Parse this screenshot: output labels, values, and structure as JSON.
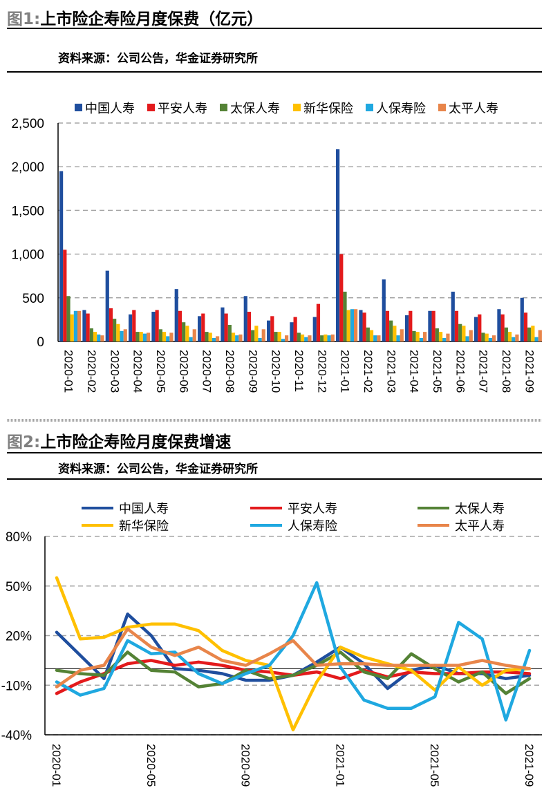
{
  "charts": [
    {
      "figure_label": "图1:",
      "title": "上市险企寿险月度保费（亿元）",
      "source": "资料来源：公司公告，华金证券研究所"
    },
    {
      "figure_label": "图2:",
      "title": "上市险企寿险月度保费增速",
      "source": "资料来源：公司公告，华金证券研究所"
    }
  ],
  "chart_data": [
    {
      "type": "bar",
      "categories": [
        "2020-01",
        "2020-02",
        "2020-03",
        "2020-04",
        "2020-05",
        "2020-06",
        "2020-07",
        "2020-08",
        "2020-09",
        "2020-10",
        "2020-11",
        "2020-12",
        "2021-01",
        "2021-02",
        "2021-03",
        "2021-04",
        "2021-05",
        "2021-06",
        "2021-07",
        "2021-08",
        "2021-09"
      ],
      "ylim": [
        0,
        2500
      ],
      "yticks": [
        0,
        500,
        1000,
        1500,
        2000,
        2500
      ],
      "ytick_labels": [
        "0",
        "500",
        "1,000",
        "1,500",
        "2,000",
        "2,500"
      ],
      "grid": true,
      "legend_position": "top",
      "series": [
        {
          "name": "中国人寿",
          "color": "#1F4E9E",
          "values": [
            1950,
            360,
            810,
            310,
            340,
            600,
            290,
            390,
            520,
            240,
            220,
            280,
            2200,
            360,
            710,
            300,
            350,
            570,
            280,
            370,
            500
          ]
        },
        {
          "name": "平安人寿",
          "color": "#E31A1C",
          "values": [
            1050,
            320,
            380,
            360,
            360,
            350,
            320,
            320,
            340,
            290,
            280,
            430,
            1000,
            330,
            350,
            350,
            350,
            350,
            310,
            310,
            330
          ]
        },
        {
          "name": "太保人寿",
          "color": "#548235",
          "values": [
            520,
            150,
            260,
            110,
            140,
            220,
            110,
            190,
            130,
            110,
            100,
            70,
            570,
            160,
            240,
            120,
            150,
            200,
            100,
            160,
            160
          ]
        },
        {
          "name": "新华保险",
          "color": "#FFC000",
          "values": [
            310,
            110,
            200,
            110,
            110,
            180,
            100,
            100,
            180,
            110,
            80,
            80,
            360,
            130,
            180,
            110,
            110,
            180,
            90,
            110,
            180
          ]
        },
        {
          "name": "人保寿险",
          "color": "#1FA8E0",
          "values": [
            350,
            80,
            120,
            90,
            60,
            50,
            40,
            70,
            40,
            30,
            50,
            70,
            370,
            70,
            70,
            40,
            40,
            60,
            40,
            50,
            50
          ]
        },
        {
          "name": "太平人寿",
          "color": "#E8854A",
          "values": [
            350,
            70,
            140,
            100,
            100,
            140,
            60,
            80,
            140,
            70,
            70,
            80,
            370,
            70,
            140,
            110,
            90,
            130,
            70,
            80,
            130
          ]
        }
      ]
    },
    {
      "type": "line",
      "categories": [
        "2020-01",
        "2020-02",
        "2020-03",
        "2020-04",
        "2020-05",
        "2020-06",
        "2020-07",
        "2020-08",
        "2020-09",
        "2020-10",
        "2020-11",
        "2020-12",
        "2021-01",
        "2021-02",
        "2021-03",
        "2021-04",
        "2021-05",
        "2021-06",
        "2021-07",
        "2021-08",
        "2021-09"
      ],
      "xtick_labels": [
        "2020-01",
        "2020-05",
        "2020-09",
        "2021-01",
        "2021-05",
        "2021-09"
      ],
      "ylim": [
        -40,
        80
      ],
      "yticks": [
        -40,
        -10,
        20,
        50,
        80
      ],
      "ytick_labels": [
        "-40%",
        "-10%",
        "20%",
        "50%",
        "80%"
      ],
      "grid": true,
      "legend_position": "top",
      "series": [
        {
          "name": "中国人寿",
          "color": "#1F4E9E",
          "values": [
            22,
            8,
            -6,
            33,
            20,
            0,
            -1,
            -3,
            -7,
            -7,
            -4,
            4,
            13,
            3,
            -12,
            -1,
            2,
            -3,
            -3,
            -6,
            -4
          ]
        },
        {
          "name": "平安人寿",
          "color": "#E31A1C",
          "values": [
            -15,
            -8,
            -3,
            3,
            5,
            2,
            4,
            2,
            -1,
            -2,
            -4,
            -2,
            -6,
            -1,
            -5,
            -2,
            -3,
            -3,
            -2,
            -2,
            -3
          ]
        },
        {
          "name": "太保人寿",
          "color": "#548235",
          "values": [
            -1,
            -3,
            -4,
            10,
            -1,
            -2,
            -11,
            -9,
            -1,
            -6,
            -4,
            2,
            10,
            -2,
            -6,
            9,
            0,
            -8,
            -2,
            -15,
            -6
          ]
        },
        {
          "name": "新华保险",
          "color": "#FFC000",
          "values": [
            55,
            18,
            19,
            25,
            27,
            27,
            23,
            11,
            5,
            2,
            -37,
            -8,
            13,
            7,
            3,
            -1,
            -13,
            1,
            -10,
            -1,
            0
          ]
        },
        {
          "name": "人保寿险",
          "color": "#1FA8E0",
          "values": [
            -8,
            -16,
            -12,
            17,
            9,
            10,
            -3,
            -9,
            -3,
            2,
            20,
            52,
            1,
            -19,
            -24,
            -24,
            -17,
            28,
            18,
            -31,
            11
          ]
        },
        {
          "name": "太平人寿",
          "color": "#E8854A",
          "values": [
            -11,
            -1,
            2,
            24,
            13,
            8,
            13,
            5,
            2,
            9,
            17,
            2,
            3,
            3,
            2,
            2,
            2,
            2,
            5,
            2,
            0
          ]
        }
      ]
    }
  ]
}
